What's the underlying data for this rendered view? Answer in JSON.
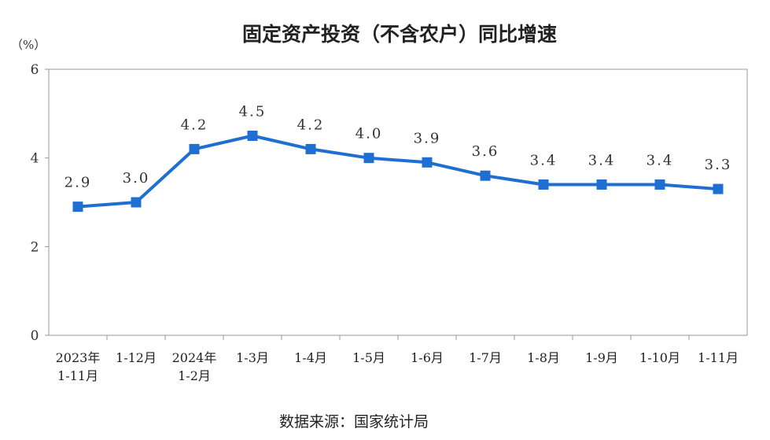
{
  "chart_data": {
    "type": "line",
    "title": "固定资产投资（不含农户）同比增速",
    "unit": "（%）",
    "source": "数据来源：国家统计局",
    "categories": [
      [
        "2023年",
        "1-11月"
      ],
      [
        "1-12月"
      ],
      [
        "2024年",
        "1-2月"
      ],
      [
        "1-3月"
      ],
      [
        "1-4月"
      ],
      [
        "1-5月"
      ],
      [
        "1-6月"
      ],
      [
        "1-7月"
      ],
      [
        "1-8月"
      ],
      [
        "1-9月"
      ],
      [
        "1-10月"
      ],
      [
        "1-11月"
      ]
    ],
    "values": [
      2.9,
      3.0,
      4.2,
      4.5,
      4.2,
      4.0,
      3.9,
      3.6,
      3.4,
      3.4,
      3.4,
      3.3
    ],
    "data_labels": [
      "2.9",
      "3.0",
      "4.2",
      "4.5",
      "4.2",
      "4.0",
      "3.9",
      "3.6",
      "3.4",
      "3.4",
      "3.4",
      "3.3"
    ],
    "yticks": [
      "0",
      "2",
      "4",
      "6"
    ],
    "ylim": [
      0,
      6
    ],
    "grid": false,
    "line_color": "#1f6fd1"
  }
}
